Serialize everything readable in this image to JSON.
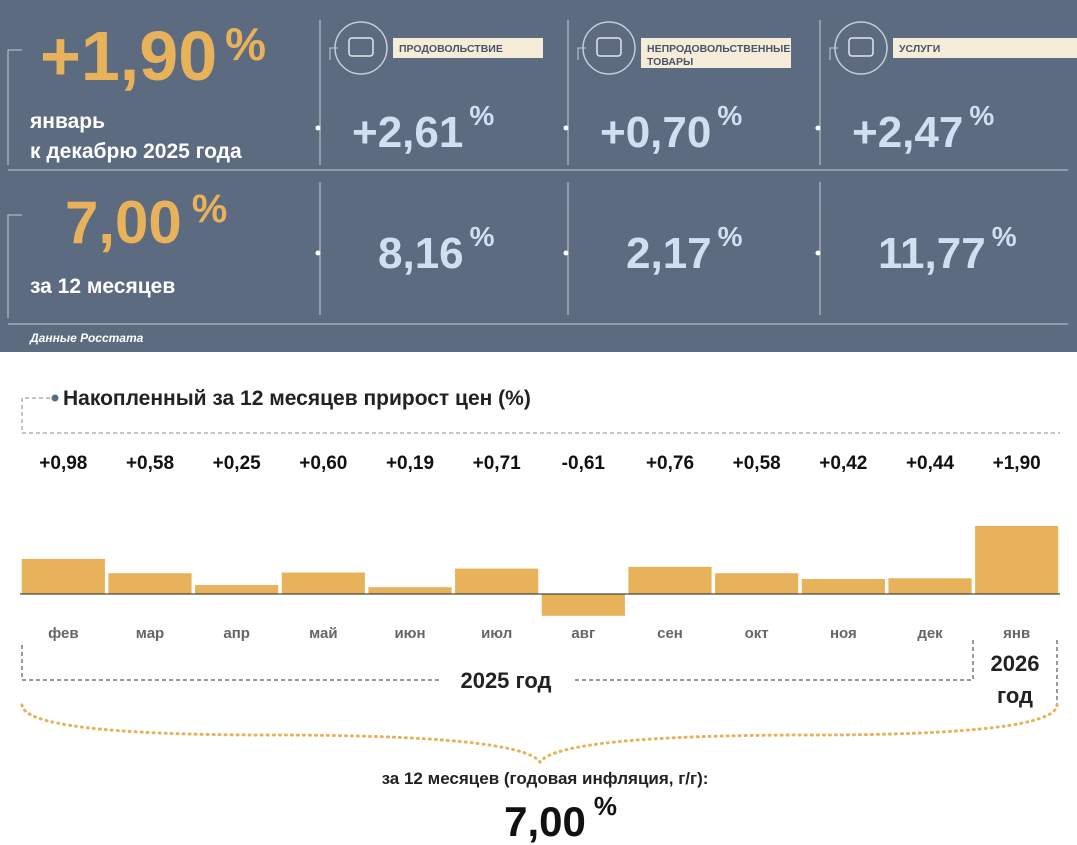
{
  "panel": {
    "headline": {
      "value": "+1,90",
      "unit": "%",
      "caption": [
        "январь",
        "к декабрю 2025 года"
      ]
    },
    "annual": {
      "value": "7,00",
      "unit": "%",
      "caption": "за 12 месяцев"
    },
    "groups": [
      {
        "label": [
          "ПРОДОВОЛЬСТВИЕ"
        ],
        "month": "+2,61",
        "month_unit": "%",
        "year": "8,16",
        "year_unit": "%"
      },
      {
        "label": [
          "НЕПРОДОВОЛЬСТВЕННЫЕ",
          "ТОВАРЫ"
        ],
        "month": "+0,70",
        "month_unit": "%",
        "year": "2,17",
        "year_unit": "%"
      },
      {
        "label": [
          "УСЛУГИ"
        ],
        "month": "+2,47",
        "month_unit": "%",
        "year": "11,77",
        "year_unit": "%"
      }
    ],
    "source": "Данные Росстата"
  },
  "chart_data": {
    "type": "bar",
    "title": "Накопленный за 12 месяцев прирост цен (%)",
    "categories": [
      "фев",
      "мар",
      "апр",
      "май",
      "июн",
      "июл",
      "авг",
      "сен",
      "окт",
      "ноя",
      "дек",
      "янв"
    ],
    "values": [
      0.98,
      0.58,
      0.25,
      0.6,
      0.19,
      0.71,
      -0.61,
      0.76,
      0.58,
      0.42,
      0.44,
      1.9
    ],
    "value_labels": [
      "+0,98",
      "+0,58",
      "+0,25",
      "+0,60",
      "+0,19",
      "+0,71",
      "-0,61",
      "+0,76",
      "+0,58",
      "+0,42",
      "+0,44",
      "+1,90"
    ],
    "color": "#e8b25a",
    "year_a": "2025 год",
    "year_b": [
      "2026",
      "год"
    ]
  },
  "footer": {
    "caption": "за 12 месяцев (годовая инфляция, г/г):",
    "value": "7,00",
    "unit": "%"
  }
}
